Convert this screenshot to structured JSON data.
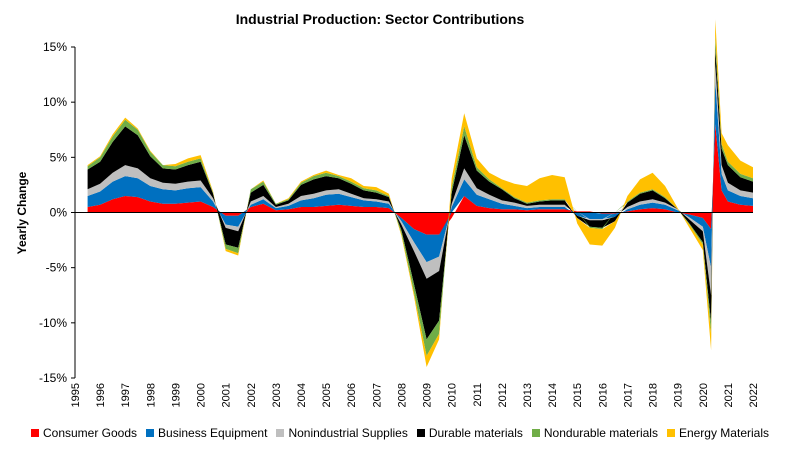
{
  "chart_data": {
    "type": "area",
    "stacked": true,
    "title": "Industrial Production: Sector Contributions",
    "xlabel": "",
    "ylabel": "Yearly Change",
    "ylim": [
      -15,
      15
    ],
    "yticks": [
      15,
      10,
      5,
      0,
      -5,
      -10,
      -15
    ],
    "ytick_labels": [
      "15%",
      "10%",
      "5%",
      "0%",
      "-5%",
      "-10%",
      "-15%"
    ],
    "xlim": [
      1995,
      2022
    ],
    "xtick_labels": [
      "1995",
      "1996",
      "1997",
      "1998",
      "1999",
      "2000",
      "2001",
      "2002",
      "2003",
      "2004",
      "2005",
      "2006",
      "2007",
      "2008",
      "2009",
      "2010",
      "2011",
      "2012",
      "2013",
      "2014",
      "2015",
      "2016",
      "2017",
      "2018",
      "2019",
      "2020",
      "2021",
      "2022"
    ],
    "grid": false,
    "legend_position": "bottom",
    "x": [
      1995.5,
      1996.0,
      1996.5,
      1997.0,
      1997.5,
      1998.0,
      1998.5,
      1999.0,
      1999.5,
      2000.0,
      2000.5,
      2001.0,
      2001.5,
      2002.0,
      2002.5,
      2003.0,
      2003.5,
      2004.0,
      2004.5,
      2005.0,
      2005.5,
      2006.0,
      2006.5,
      2007.0,
      2007.5,
      2008.0,
      2008.5,
      2009.0,
      2009.5,
      2010.0,
      2010.5,
      2011.0,
      2011.5,
      2012.0,
      2012.5,
      2013.0,
      2013.5,
      2014.0,
      2014.5,
      2015.0,
      2015.5,
      2016.0,
      2016.5,
      2017.0,
      2017.5,
      2018.0,
      2018.5,
      2019.0,
      2019.5,
      2020.0,
      2020.33,
      2020.5,
      2020.75,
      2021.0,
      2021.5,
      2022.0
    ],
    "series": [
      {
        "name": "Consumer Goods",
        "color": "#ff0000",
        "values": [
          0.5,
          0.7,
          1.2,
          1.5,
          1.4,
          1.0,
          0.8,
          0.8,
          0.9,
          1.0,
          0.5,
          -0.3,
          -0.3,
          0.5,
          0.8,
          0.2,
          0.3,
          0.5,
          0.5,
          0.6,
          0.7,
          0.6,
          0.5,
          0.5,
          0.4,
          -0.5,
          -1.5,
          -2.0,
          -2.0,
          -0.5,
          1.5,
          0.6,
          0.4,
          0.3,
          0.3,
          0.2,
          0.3,
          0.3,
          0.3,
          0.1,
          0.1,
          -0.1,
          -0.1,
          0.1,
          0.3,
          0.4,
          0.3,
          0.0,
          -0.2,
          -0.5,
          -1.5,
          8.0,
          2.0,
          1.0,
          0.7,
          0.6
        ]
      },
      {
        "name": "Business Equipment",
        "color": "#0070c0",
        "values": [
          1.0,
          1.2,
          1.6,
          1.8,
          1.7,
          1.4,
          1.3,
          1.2,
          1.3,
          1.3,
          0.5,
          -0.8,
          -1.0,
          0.2,
          0.4,
          0.2,
          0.3,
          0.6,
          0.8,
          1.0,
          1.0,
          0.8,
          0.6,
          0.5,
          0.4,
          -0.3,
          -1.2,
          -2.5,
          -2.0,
          0.5,
          1.5,
          1.0,
          0.8,
          0.5,
          0.3,
          0.2,
          0.2,
          0.2,
          0.2,
          -0.3,
          -0.6,
          -0.5,
          -0.3,
          0.2,
          0.4,
          0.5,
          0.4,
          0.2,
          -0.3,
          -0.8,
          -3.5,
          4.0,
          1.5,
          1.0,
          0.8,
          0.7
        ]
      },
      {
        "name": "Nonindustrial Supplies",
        "color": "#bfbfbf",
        "values": [
          0.6,
          0.7,
          0.8,
          1.0,
          0.9,
          0.7,
          0.6,
          0.6,
          0.6,
          0.6,
          0.3,
          -0.3,
          -0.4,
          0.3,
          0.3,
          0.1,
          0.2,
          0.4,
          0.4,
          0.4,
          0.4,
          0.3,
          0.2,
          0.2,
          0.2,
          -0.3,
          -0.8,
          -1.5,
          -1.3,
          0.3,
          1.0,
          0.6,
          0.4,
          0.3,
          0.3,
          0.2,
          0.2,
          0.2,
          0.2,
          0.0,
          -0.1,
          -0.1,
          0.0,
          0.2,
          0.3,
          0.3,
          0.2,
          0.1,
          -0.2,
          -0.4,
          -2.5,
          1.5,
          0.8,
          0.7,
          0.5,
          0.5
        ]
      },
      {
        "name": "Durable materials",
        "color": "#000000",
        "values": [
          1.8,
          2.0,
          2.8,
          3.5,
          3.0,
          2.0,
          1.3,
          1.3,
          1.5,
          1.7,
          0.4,
          -1.5,
          -1.5,
          0.8,
          1.0,
          0.2,
          0.3,
          1.0,
          1.3,
          1.3,
          1.0,
          0.9,
          0.7,
          0.6,
          0.4,
          -0.5,
          -3.0,
          -5.5,
          -4.5,
          1.0,
          3.0,
          1.6,
          1.2,
          1.0,
          0.4,
          0.2,
          0.3,
          0.4,
          0.4,
          -0.2,
          -0.6,
          -0.7,
          -0.4,
          0.4,
          0.7,
          0.8,
          0.4,
          0.0,
          -0.4,
          -1.0,
          -2.5,
          1.5,
          1.5,
          1.6,
          1.2,
          1.0
        ]
      },
      {
        "name": "Nondurable materials",
        "color": "#70ad47",
        "values": [
          0.3,
          0.4,
          0.5,
          0.6,
          0.5,
          0.4,
          0.3,
          0.3,
          0.3,
          0.3,
          0.1,
          -0.4,
          -0.5,
          0.3,
          0.3,
          0.1,
          0.1,
          0.2,
          0.3,
          0.3,
          0.2,
          0.2,
          0.2,
          0.2,
          0.1,
          -0.3,
          -0.8,
          -1.5,
          -1.2,
          0.5,
          0.8,
          0.3,
          0.2,
          0.1,
          0.1,
          0.1,
          0.1,
          0.1,
          0.1,
          0.0,
          -0.1,
          -0.1,
          0.0,
          0.1,
          0.1,
          0.1,
          0.1,
          0.0,
          -0.1,
          -0.2,
          -1.0,
          1.0,
          0.4,
          0.3,
          0.3,
          0.3
        ]
      },
      {
        "name": "Energy Materials",
        "color": "#ffc000",
        "values": [
          0.1,
          0.1,
          0.2,
          0.2,
          0.1,
          0.1,
          0.0,
          0.2,
          0.3,
          0.3,
          0.1,
          -0.2,
          -0.2,
          0.0,
          0.1,
          0.0,
          0.1,
          0.1,
          0.1,
          0.2,
          0.1,
          0.3,
          0.2,
          0.3,
          0.2,
          -0.2,
          -0.3,
          -1.0,
          -0.5,
          0.8,
          1.2,
          0.8,
          0.6,
          0.8,
          1.2,
          1.5,
          2.0,
          2.2,
          2.0,
          -0.5,
          -1.5,
          -1.5,
          -0.6,
          0.5,
          1.2,
          1.5,
          1.0,
          0.1,
          -0.3,
          -0.5,
          -1.5,
          1.5,
          1.0,
          1.5,
          1.2,
          1.0
        ]
      }
    ]
  }
}
